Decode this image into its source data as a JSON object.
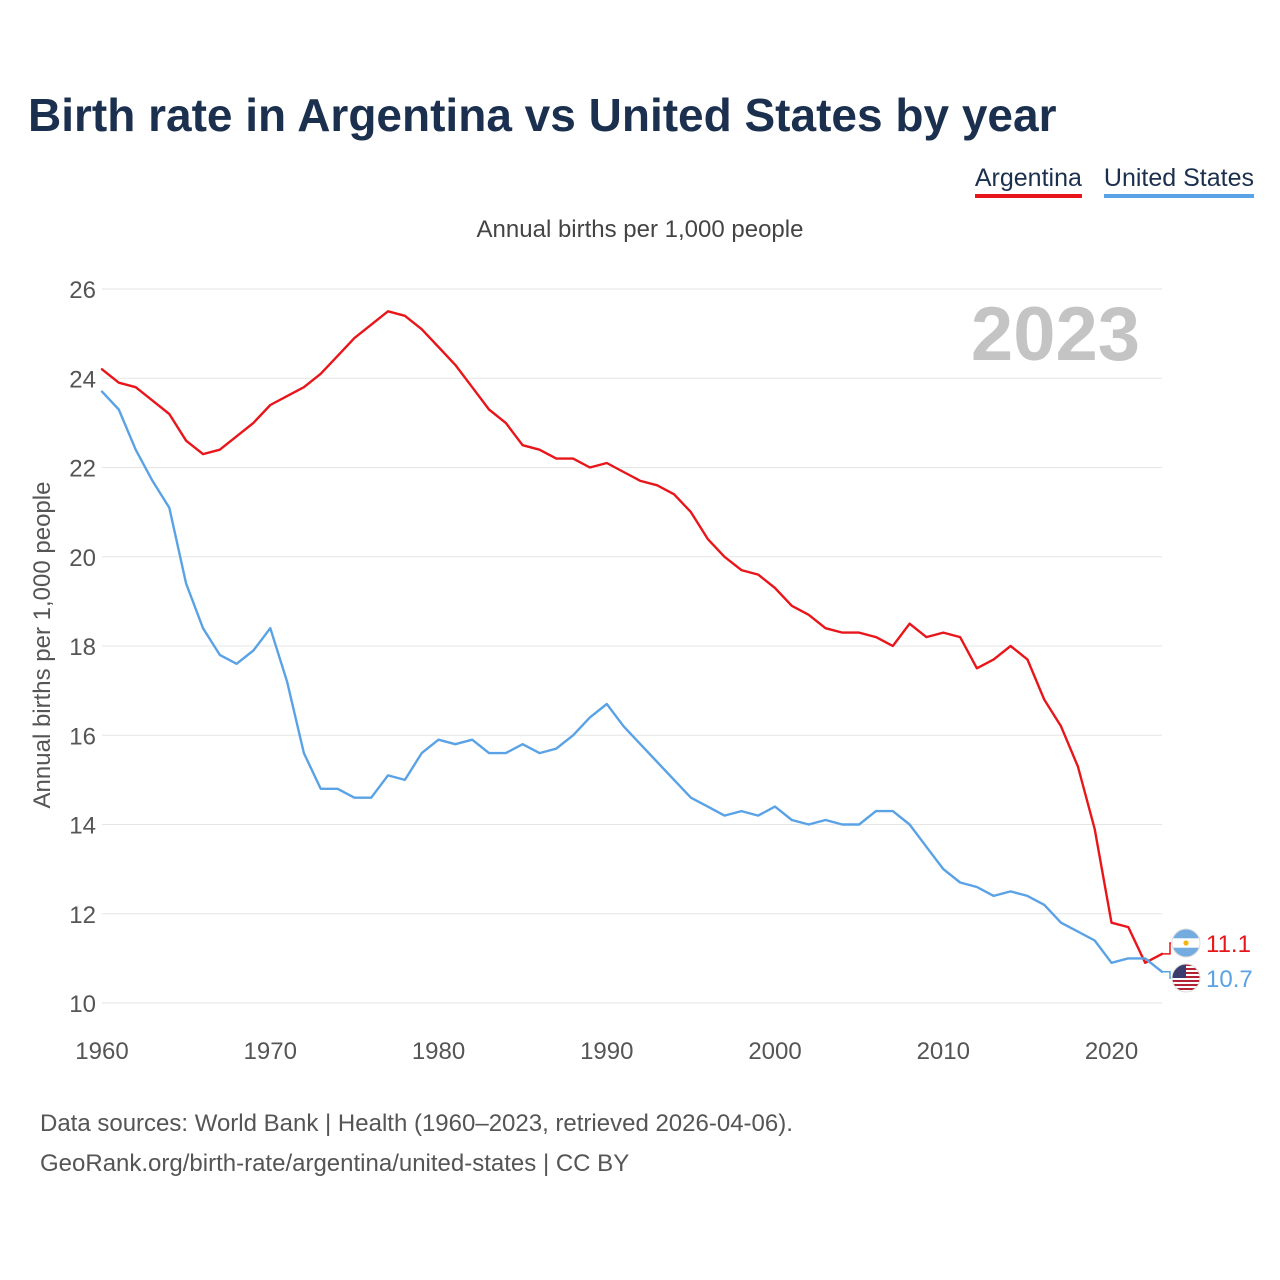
{
  "title": "Birth rate in Argentina vs United States by year",
  "legend": [
    {
      "label": "Argentina",
      "color": "#e8161b"
    },
    {
      "label": "United States",
      "color": "#5aa2e6"
    }
  ],
  "subtitle": "Annual births per 1,000 people",
  "year_label": "2023",
  "footer": {
    "sources": "Data sources: World Bank | Health (1960–2023, retrieved 2026-04-06).",
    "url": "GeoRank.org/birth-rate/argentina/united-states | CC BY"
  },
  "chart_data": {
    "type": "line",
    "title": "Birth rate in Argentina vs United States by year",
    "xlabel": "",
    "ylabel": "Annual births per 1,000 people",
    "xlim": [
      1960,
      2023
    ],
    "ylim": [
      10,
      26
    ],
    "grid": true,
    "x_ticks": [
      1960,
      1970,
      1980,
      1990,
      2000,
      2010,
      2020
    ],
    "y_ticks": [
      10,
      12,
      14,
      16,
      18,
      20,
      22,
      24,
      26
    ],
    "x": [
      1960,
      1961,
      1962,
      1963,
      1964,
      1965,
      1966,
      1967,
      1968,
      1969,
      1970,
      1971,
      1972,
      1973,
      1974,
      1975,
      1976,
      1977,
      1978,
      1979,
      1980,
      1981,
      1982,
      1983,
      1984,
      1985,
      1986,
      1987,
      1988,
      1989,
      1990,
      1991,
      1992,
      1993,
      1994,
      1995,
      1996,
      1997,
      1998,
      1999,
      2000,
      2001,
      2002,
      2003,
      2004,
      2005,
      2006,
      2007,
      2008,
      2009,
      2010,
      2011,
      2012,
      2013,
      2014,
      2015,
      2016,
      2017,
      2018,
      2019,
      2020,
      2021,
      2022,
      2023
    ],
    "series": [
      {
        "name": "Argentina",
        "color": "#e8161b",
        "end_label": "11.1",
        "values": [
          24.2,
          23.9,
          23.8,
          23.5,
          23.2,
          22.6,
          22.3,
          22.4,
          22.7,
          23.0,
          23.4,
          23.6,
          23.8,
          24.1,
          24.5,
          24.9,
          25.2,
          25.5,
          25.4,
          25.1,
          24.7,
          24.3,
          23.8,
          23.3,
          23.0,
          22.5,
          22.4,
          22.2,
          22.2,
          22.0,
          22.1,
          21.9,
          21.7,
          21.6,
          21.4,
          21.0,
          20.4,
          20.0,
          19.7,
          19.6,
          19.3,
          18.9,
          18.7,
          18.4,
          18.3,
          18.3,
          18.2,
          18.0,
          18.5,
          18.2,
          18.3,
          18.2,
          17.5,
          17.7,
          18.0,
          17.7,
          16.8,
          16.2,
          15.3,
          13.9,
          11.8,
          11.7,
          10.9,
          11.1
        ]
      },
      {
        "name": "United States",
        "color": "#5aa2e6",
        "end_label": "10.7",
        "values": [
          23.7,
          23.3,
          22.4,
          21.7,
          21.1,
          19.4,
          18.4,
          17.8,
          17.6,
          17.9,
          18.4,
          17.2,
          15.6,
          14.8,
          14.8,
          14.6,
          14.6,
          15.1,
          15.0,
          15.6,
          15.9,
          15.8,
          15.9,
          15.6,
          15.6,
          15.8,
          15.6,
          15.7,
          16.0,
          16.4,
          16.7,
          16.2,
          15.8,
          15.4,
          15.0,
          14.6,
          14.4,
          14.2,
          14.3,
          14.2,
          14.4,
          14.1,
          14.0,
          14.1,
          14.0,
          14.0,
          14.3,
          14.3,
          14.0,
          13.5,
          13.0,
          12.7,
          12.6,
          12.4,
          12.5,
          12.4,
          12.2,
          11.8,
          11.6,
          11.4,
          10.9,
          11.0,
          11.0,
          10.7
        ]
      }
    ]
  }
}
